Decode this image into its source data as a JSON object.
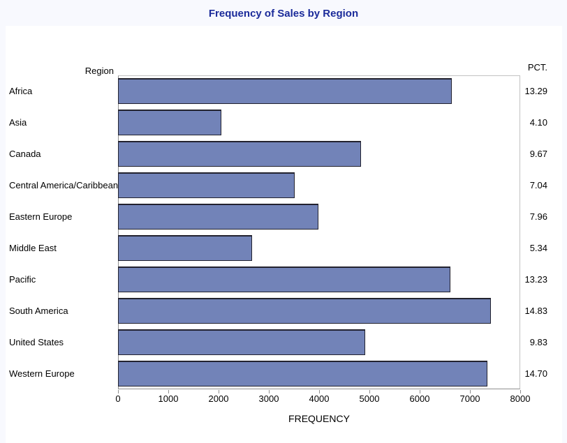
{
  "title": "Frequency of Sales by Region",
  "pct_header": "PCT.",
  "category_axis_label": "Region",
  "colors": {
    "page_background": "#f8f9fe",
    "canvas_background": "#ffffff",
    "title_text": "#1b2b9a",
    "bar_fill": "#7283b8",
    "bar_border": "#22222e",
    "axis_line": "#8f8f8f"
  },
  "chart_data": {
    "type": "bar",
    "orientation": "horizontal",
    "title": "Frequency of Sales by Region",
    "xlabel": "FREQUENCY",
    "ylabel": "Region",
    "xlim": [
      0,
      8000
    ],
    "xticks": [
      0,
      1000,
      2000,
      3000,
      4000,
      5000,
      6000,
      7000,
      8000
    ],
    "grid": false,
    "legend": "none",
    "categories": [
      "Africa",
      "Asia",
      "Canada",
      "Central America/Caribbean",
      "Eastern Europe",
      "Middle East",
      "Pacific",
      "South America",
      "United States",
      "Western Europe"
    ],
    "series": [
      {
        "name": "FREQUENCY",
        "values": [
          6645,
          2050,
          4835,
          3520,
          3980,
          2670,
          6615,
          7415,
          4915,
          7350
        ]
      },
      {
        "name": "PCT.",
        "values": [
          "13.29",
          "4.10",
          "9.67",
          "7.04",
          "7.96",
          "5.34",
          "13.23",
          "14.83",
          "9.83",
          "14.70"
        ]
      }
    ]
  }
}
